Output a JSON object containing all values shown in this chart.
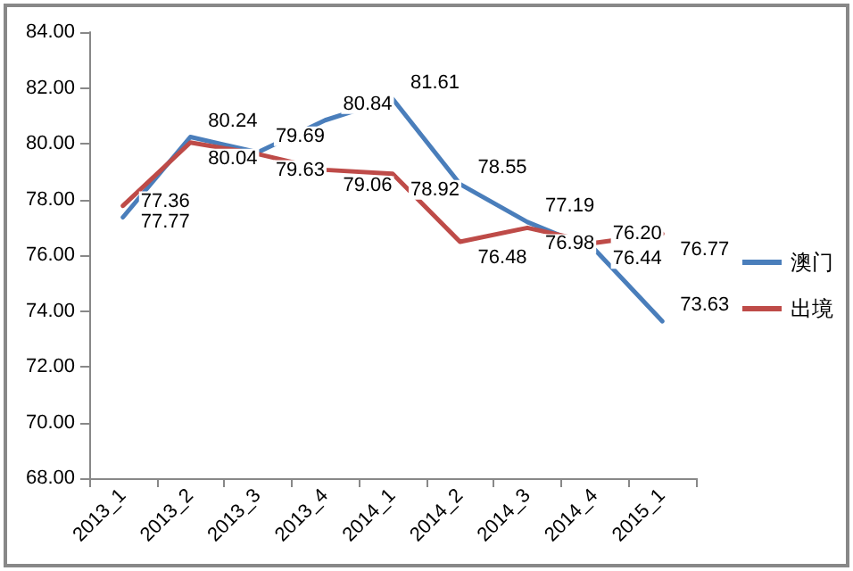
{
  "chart_data": {
    "type": "line",
    "categories": [
      "2013_1",
      "2013_2",
      "2013_3",
      "2013_4",
      "2014_1",
      "2014_2",
      "2014_3",
      "2014_4",
      "2015_1"
    ],
    "series": [
      {
        "name": "澳门",
        "color": "#4a7ebb",
        "values": [
          77.36,
          80.24,
          79.69,
          80.84,
          81.61,
          78.55,
          77.19,
          76.2,
          73.63
        ],
        "value_labels": [
          "77.36",
          "80.24",
          "79.69",
          "80.84",
          "81.61",
          "78.55",
          "77.19",
          "76.20",
          "73.63"
        ]
      },
      {
        "name": "出境",
        "color": "#be4b48",
        "values": [
          77.77,
          80.04,
          79.63,
          79.06,
          78.92,
          76.48,
          76.98,
          76.44,
          76.77
        ],
        "value_labels": [
          "77.77",
          "80.04",
          "79.63",
          "79.06",
          "78.92",
          "76.48",
          "76.98",
          "76.44",
          "76.77"
        ]
      }
    ],
    "ylim": [
      68,
      84
    ],
    "yticks": [
      {
        "value": 68,
        "label": "68.00"
      },
      {
        "value": 70,
        "label": "70.00"
      },
      {
        "value": 72,
        "label": "72.00"
      },
      {
        "value": 74,
        "label": "74.00"
      },
      {
        "value": 76,
        "label": "76.00"
      },
      {
        "value": 78,
        "label": "78.00"
      },
      {
        "value": 80,
        "label": "80.00"
      },
      {
        "value": 82,
        "label": "82.00"
      },
      {
        "value": 84,
        "label": "84.00"
      }
    ],
    "legend": "right",
    "grid": false,
    "marker": "none",
    "line_style": "solid"
  }
}
